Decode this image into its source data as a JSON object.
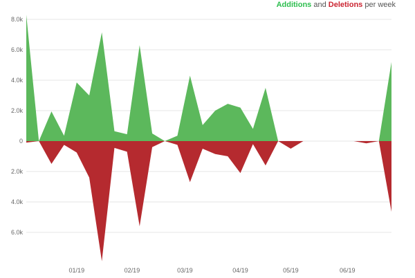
{
  "legend": {
    "additions_label": "Additions",
    "and_label": "and",
    "deletions_label": "Deletions",
    "suffix_label": "per week"
  },
  "colors": {
    "additions": "#5cb85c",
    "deletions": "#b52a2f",
    "grid": "#e6e6e6",
    "axis_text": "#666666"
  },
  "chart_data": {
    "type": "area",
    "title": "",
    "xlabel": "",
    "ylabel": "",
    "ylim": [
      -8000,
      8500
    ],
    "y_ticks": [
      {
        "value": 8000,
        "label": "8.0k"
      },
      {
        "value": 6000,
        "label": "6.0k"
      },
      {
        "value": 4000,
        "label": "4.0k"
      },
      {
        "value": 2000,
        "label": "2.0k"
      },
      {
        "value": 0,
        "label": "0"
      },
      {
        "value": -2000,
        "label": "2.0k"
      },
      {
        "value": -4000,
        "label": "4.0k"
      },
      {
        "value": -6000,
        "label": "6.0k"
      }
    ],
    "x_ticks": [
      {
        "week": 4,
        "label": "01/19"
      },
      {
        "week": 8.4,
        "label": "02/19"
      },
      {
        "week": 12.6,
        "label": "03/19"
      },
      {
        "week": 17,
        "label": "04/19"
      },
      {
        "week": 21,
        "label": "05/19"
      },
      {
        "week": 25.5,
        "label": "06/19"
      }
    ],
    "weeks": [
      0,
      1,
      2,
      3,
      4,
      5,
      6,
      7,
      8,
      9,
      10,
      11,
      12,
      13,
      14,
      15,
      16,
      17,
      18,
      19,
      20,
      21,
      22,
      23,
      24,
      25,
      26,
      27,
      28,
      29
    ],
    "series": [
      {
        "name": "Additions",
        "values": [
          8300,
          0,
          1950,
          350,
          3850,
          3000,
          7150,
          650,
          450,
          6300,
          500,
          0,
          350,
          4300,
          1050,
          2000,
          2450,
          2200,
          800,
          3500,
          0,
          0,
          0,
          0,
          0,
          0,
          0,
          0,
          0,
          5200
        ]
      },
      {
        "name": "Deletions",
        "values": [
          -100,
          0,
          -1500,
          -250,
          -750,
          -2400,
          -7900,
          -450,
          -700,
          -5600,
          -400,
          0,
          -250,
          -2700,
          -500,
          -850,
          -1000,
          -2100,
          -200,
          -1600,
          0,
          -500,
          0,
          0,
          0,
          0,
          0,
          -150,
          0,
          -4650
        ]
      }
    ],
    "grid": true,
    "legend_position": "top-right"
  }
}
